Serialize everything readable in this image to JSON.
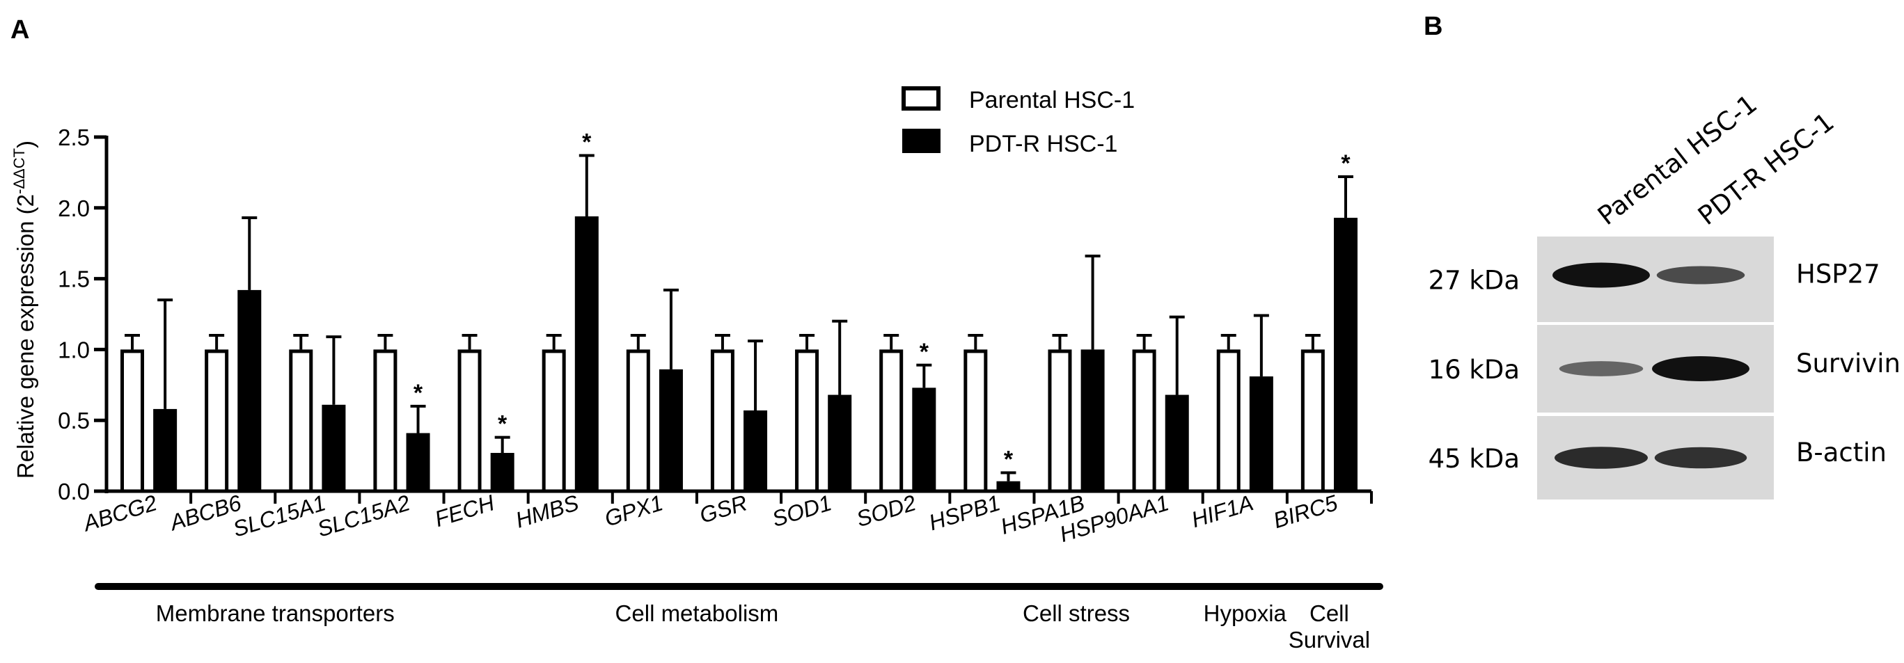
{
  "panels": {
    "a": "A",
    "b": "B"
  },
  "chart_data": {
    "type": "bar",
    "ylabel_main": "Relative gene expression (2",
    "ylabel_sup": "-ΔΔCT",
    "ylabel_close": ")",
    "ylim": [
      0,
      2.5
    ],
    "yticks": [
      {
        "v": 0,
        "label": "0.0"
      },
      {
        "v": 0.5,
        "label": "0.5"
      },
      {
        "v": 1.0,
        "label": "1.0"
      },
      {
        "v": 1.5,
        "label": "1.5"
      },
      {
        "v": 2.0,
        "label": "2.0"
      },
      {
        "v": 2.5,
        "label": "2.5"
      }
    ],
    "categories": [
      "ABCG2",
      "ABCB6",
      "SLC15A1",
      "SLC15A2",
      "FECH",
      "HMBS",
      "GPX1",
      "GSR",
      "SOD1",
      "SOD2",
      "HSPB1",
      "HSPA1B",
      "HSP90AA1",
      "HIF1A",
      "BIRC5"
    ],
    "series": [
      {
        "name": "Parental HSC-1",
        "fill": "#ffffff",
        "values": [
          1.0,
          1.0,
          1.0,
          1.0,
          1.0,
          1.0,
          1.0,
          1.0,
          1.0,
          1.0,
          1.0,
          1.0,
          1.0,
          1.0,
          1.0
        ],
        "errors": [
          0.1,
          0.1,
          0.1,
          0.1,
          0.1,
          0.1,
          0.1,
          0.1,
          0.1,
          0.1,
          0.1,
          0.1,
          0.1,
          0.1,
          0.1
        ]
      },
      {
        "name": "PDT-R HSC-1",
        "fill": "#000000",
        "values": [
          0.58,
          1.42,
          0.61,
          0.41,
          0.27,
          1.94,
          0.86,
          0.57,
          0.68,
          0.73,
          0.07,
          1.0,
          0.68,
          0.81,
          1.93
        ],
        "errors": [
          0.77,
          0.51,
          0.48,
          0.19,
          0.11,
          0.43,
          0.56,
          0.49,
          0.52,
          0.16,
          0.06,
          0.66,
          0.55,
          0.43,
          0.29
        ]
      }
    ],
    "significant": [
      false,
      false,
      false,
      true,
      true,
      true,
      false,
      false,
      false,
      true,
      true,
      false,
      false,
      false,
      true
    ],
    "sig_mark": "*",
    "groups": [
      {
        "label": "Membrane transporters",
        "start": 0,
        "end": 3
      },
      {
        "label": "Cell metabolism",
        "start": 4,
        "end": 9
      },
      {
        "label": "Cell stress",
        "start": 10,
        "end": 12
      },
      {
        "label": "Hypoxia",
        "start": 13,
        "end": 13
      },
      {
        "label": "Cell\nSurvival",
        "start": 14,
        "end": 14
      }
    ],
    "legend_position": "top-center"
  },
  "western_blot": {
    "lanes": [
      "Parental HSC-1",
      "PDT-R HSC-1"
    ],
    "rows": [
      {
        "size": "27 kDa",
        "protein": "HSP27",
        "intensity": [
          1.0,
          0.55
        ]
      },
      {
        "size": "16 kDa",
        "protein": "Survivin",
        "intensity": [
          0.35,
          1.0
        ]
      },
      {
        "size": "45 kDa",
        "protein": "B-actin",
        "intensity": [
          0.8,
          0.75
        ]
      }
    ],
    "colors": {
      "membrane": "#d9d9d9",
      "band": "#111111"
    }
  }
}
